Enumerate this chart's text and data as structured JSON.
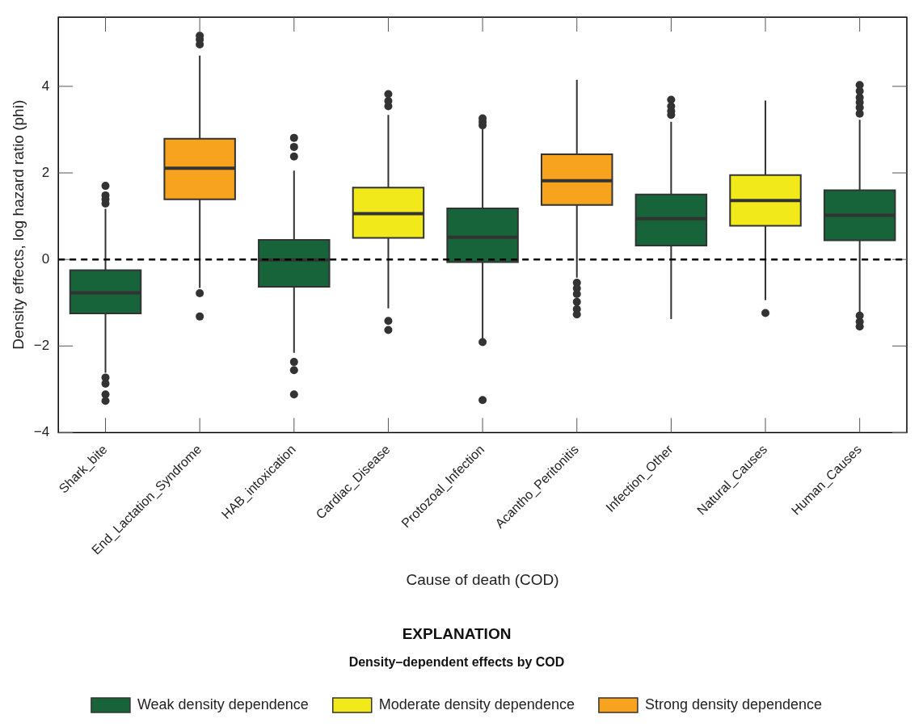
{
  "chart_data": {
    "type": "box",
    "xlabel": "Cause of death (COD)",
    "ylabel": "Density effects, log hazard ratio (phi)",
    "legend_title": "EXPLANATION",
    "subtitle": "Density–dependent effects by COD",
    "categories": [
      "Shark_bite",
      "End_Lactation_Syndrome",
      "HAB_intoxication",
      "Cardiac_Disease",
      "Protozoal_Infection",
      "Acantho_Peritonitis",
      "Infection_Other",
      "Natural_Causes",
      "Human_Causes"
    ],
    "ylim": [
      -4,
      5.6
    ],
    "yticks": [
      -4,
      -2,
      0,
      2,
      4
    ],
    "grid": false,
    "legend": "bottom",
    "ref_lines": [
      {
        "axis": "y",
        "value": 0,
        "line_style": "dashed",
        "color": "#000000"
      }
    ],
    "series": [
      {
        "name": "Weak density dependence",
        "color": "#17643a",
        "boxes": [
          {
            "low": -2.62,
            "q1": -1.25,
            "median": -0.77,
            "q3": -0.25,
            "high": 1.17,
            "outliers": [
              1.29,
              1.39,
              1.48,
              1.7,
              -2.73,
              -2.87,
              -3.12,
              -3.27
            ]
          },
          null,
          {
            "low": -2.16,
            "q1": -0.63,
            "median": -0.01,
            "q3": 0.45,
            "high": 2.05,
            "outliers": [
              2.38,
              2.6,
              2.81,
              -2.37,
              -2.56,
              -3.12
            ]
          },
          null,
          {
            "low": -1.88,
            "q1": -0.06,
            "median": 0.51,
            "q3": 1.18,
            "high": 3.02,
            "outliers": [
              3.1,
              3.18,
              3.26,
              -1.91,
              -3.25
            ]
          },
          null,
          {
            "low": -1.38,
            "q1": 0.32,
            "median": 0.94,
            "q3": 1.5,
            "high": 3.18,
            "outliers": [
              3.34,
              3.43,
              3.54,
              3.69
            ]
          },
          null,
          {
            "low": -1.23,
            "q1": 0.44,
            "median": 1.02,
            "q3": 1.6,
            "high": 3.23,
            "outliers": [
              3.37,
              3.51,
              3.63,
              3.74,
              3.89,
              4.03,
              -1.3,
              -1.44,
              -1.55
            ]
          }
        ]
      },
      {
        "name": "Moderate density dependence",
        "color": "#f2e91a",
        "boxes": [
          null,
          null,
          null,
          {
            "low": -1.13,
            "q1": 0.5,
            "median": 1.06,
            "q3": 1.66,
            "high": 3.34,
            "outliers": [
              3.54,
              3.66,
              3.82,
              -1.42,
              -1.63
            ]
          },
          null,
          null,
          null,
          {
            "low": -0.94,
            "q1": 0.78,
            "median": 1.36,
            "q3": 1.95,
            "high": 3.67,
            "outliers": [
              -1.24
            ]
          },
          null
        ]
      },
      {
        "name": "Strong density dependence",
        "color": "#f7a31d",
        "boxes": [
          null,
          {
            "low": -0.66,
            "q1": 1.39,
            "median": 2.11,
            "q3": 2.79,
            "high": 4.71,
            "outliers": [
              4.97,
              5.08,
              5.17,
              -0.78,
              -1.32
            ]
          },
          null,
          null,
          null,
          {
            "low": -0.42,
            "q1": 1.26,
            "median": 1.82,
            "q3": 2.43,
            "high": 4.15,
            "outliers": [
              -0.54,
              -0.67,
              -0.8,
              -0.98,
              -1.15,
              -1.27
            ]
          },
          null,
          null,
          null
        ]
      }
    ]
  }
}
